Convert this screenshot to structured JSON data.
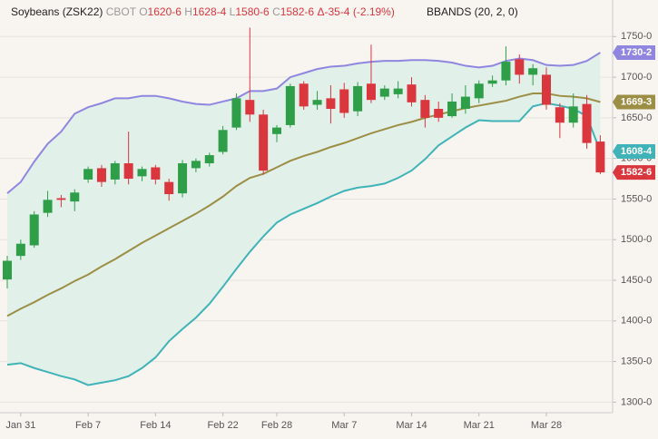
{
  "chart_data": {
    "type": "candlestick",
    "header": {
      "symbol": "Soybeans (ZSK22)",
      "exchange": "CBOT",
      "open_key": "O",
      "open": "1620-6",
      "high_key": "H",
      "high": "1628-4",
      "low_key": "L",
      "low": "1580-6",
      "close_key": "C",
      "close": "1582-6",
      "change_key": "Δ",
      "change": "-35-4",
      "change_pct": "(-2.19%)",
      "indicator": "BBANDS (20, 2, 0)"
    },
    "categories": [
      null,
      "Jan 31",
      null,
      null,
      null,
      null,
      "Feb 7",
      null,
      null,
      null,
      null,
      "Feb 14",
      null,
      null,
      null,
      null,
      "Feb 22",
      null,
      null,
      null,
      "Feb 28",
      null,
      null,
      null,
      null,
      "Mar 7",
      null,
      null,
      null,
      null,
      "Mar 14",
      null,
      null,
      null,
      null,
      "Mar 21",
      null,
      null,
      null,
      null,
      "Mar 28",
      null,
      null,
      null,
      null
    ],
    "ohlc": {
      "up_color": "#2e9e48",
      "down_color": "#d9363e",
      "open": [
        1451,
        1480,
        1493,
        1533,
        1551,
        1547,
        1574,
        1588,
        1574,
        1594,
        1578,
        1589,
        1571,
        1557,
        1588,
        1594,
        1608,
        1638,
        1672,
        1654,
        1630,
        1641,
        1692,
        1666,
        1674,
        1685,
        1658,
        1692,
        1676,
        1679,
        1691,
        1672,
        1661,
        1652,
        1661,
        1674,
        1692,
        1696,
        1722,
        1703,
        1703,
        1663,
        1644,
        1667,
        1620.75
      ],
      "high": [
        1480,
        1500,
        1535,
        1560,
        1555,
        1562,
        1590,
        1592,
        1597,
        1633,
        1590,
        1592,
        1575,
        1598,
        1600,
        1607,
        1640,
        1680,
        1761,
        1660,
        1641,
        1692,
        1695,
        1683,
        1690,
        1693,
        1694,
        1740,
        1690,
        1695,
        1700,
        1678,
        1670,
        1680,
        1690,
        1696,
        1702,
        1738,
        1728,
        1716,
        1712,
        1668,
        1680,
        1678,
        1628.5
      ],
      "low": [
        1440,
        1475,
        1490,
        1528,
        1540,
        1535,
        1570,
        1565,
        1568,
        1568,
        1572,
        1568,
        1548,
        1552,
        1583,
        1590,
        1605,
        1635,
        1645,
        1580,
        1620,
        1638,
        1660,
        1660,
        1643,
        1650,
        1652,
        1668,
        1672,
        1674,
        1664,
        1638,
        1645,
        1650,
        1655,
        1668,
        1688,
        1690,
        1692,
        1690,
        1660,
        1625,
        1638,
        1612,
        1580.75
      ],
      "close": [
        1474,
        1495,
        1531,
        1549,
        1549,
        1558,
        1587,
        1571,
        1594,
        1575,
        1587,
        1574,
        1556,
        1594,
        1597,
        1604,
        1635,
        1674,
        1654,
        1585,
        1638,
        1689,
        1664,
        1672,
        1661,
        1656,
        1689,
        1672,
        1686,
        1686,
        1669,
        1650,
        1650,
        1670,
        1676,
        1692,
        1696,
        1719,
        1703,
        1711,
        1666,
        1644,
        1664,
        1619,
        1582.75
      ],
      "close_labels": [
        null,
        null,
        null,
        null,
        null,
        null,
        null,
        null,
        null,
        null,
        null,
        null,
        null,
        null,
        null,
        null,
        null,
        null,
        null,
        null,
        null,
        null,
        null,
        null,
        null,
        null,
        null,
        null,
        null,
        null,
        null,
        null,
        null,
        null,
        null,
        null,
        null,
        null,
        null,
        null,
        null,
        null,
        null,
        null,
        "1582-6"
      ]
    },
    "bands": [
      {
        "color": "#8f86e0",
        "values": [
          1557,
          1571,
          1596,
          1618,
          1633,
          1655,
          1663,
          1668,
          1674,
          1674,
          1677,
          1677,
          1674,
          1670,
          1667,
          1666,
          1670,
          1674,
          1683,
          1683,
          1686,
          1700,
          1705,
          1710,
          1713,
          1714,
          1717,
          1719,
          1720,
          1720,
          1721,
          1721,
          1720,
          1718,
          1714,
          1712,
          1714,
          1720,
          1723,
          1721,
          1715,
          1714,
          1715,
          1720,
          1730.25
        ],
        "value_labels": [
          null,
          null,
          null,
          null,
          null,
          null,
          null,
          null,
          null,
          null,
          null,
          null,
          null,
          null,
          null,
          null,
          null,
          null,
          null,
          null,
          null,
          null,
          null,
          null,
          null,
          null,
          null,
          null,
          null,
          null,
          null,
          null,
          null,
          null,
          null,
          null,
          null,
          null,
          null,
          null,
          null,
          null,
          null,
          null,
          "1730-2"
        ]
      },
      {
        "color": "#9c8f45",
        "values": [
          1406,
          1415,
          1423,
          1432,
          1440,
          1449,
          1457,
          1467,
          1476,
          1486,
          1496,
          1505,
          1514,
          1523,
          1532,
          1542,
          1553,
          1566,
          1576,
          1581,
          1589,
          1597,
          1603,
          1608,
          1614,
          1619,
          1625,
          1631,
          1636,
          1641,
          1645,
          1650,
          1654,
          1658,
          1662,
          1665,
          1668,
          1671,
          1676,
          1680,
          1680,
          1677,
          1676,
          1674,
          1669.375
        ],
        "value_labels": [
          null,
          null,
          null,
          null,
          null,
          null,
          null,
          null,
          null,
          null,
          null,
          null,
          null,
          null,
          null,
          null,
          null,
          null,
          null,
          null,
          null,
          null,
          null,
          null,
          null,
          null,
          null,
          null,
          null,
          null,
          null,
          null,
          null,
          null,
          null,
          null,
          null,
          null,
          null,
          null,
          null,
          null,
          null,
          null,
          "1669-3"
        ]
      },
      {
        "color": "#3fb3b8",
        "values": [
          1346,
          1348,
          1342,
          1337,
          1332,
          1328,
          1321,
          1324,
          1327,
          1332,
          1342,
          1355,
          1375,
          1390,
          1404,
          1421,
          1442,
          1464,
          1485,
          1504,
          1521,
          1531,
          1538,
          1545,
          1553,
          1560,
          1564,
          1566,
          1569,
          1576,
          1585,
          1599,
          1616,
          1627,
          1638,
          1647,
          1646,
          1646,
          1646,
          1664,
          1668,
          1665,
          1661,
          1652,
          1608.5
        ],
        "value_labels": [
          null,
          null,
          null,
          null,
          null,
          null,
          null,
          null,
          null,
          null,
          null,
          null,
          null,
          null,
          null,
          null,
          null,
          null,
          null,
          null,
          null,
          null,
          null,
          null,
          null,
          null,
          null,
          null,
          null,
          null,
          null,
          null,
          null,
          null,
          null,
          null,
          null,
          null,
          null,
          null,
          null,
          null,
          null,
          null,
          "1608-4"
        ]
      }
    ],
    "band_fill": "#e2f0ea",
    "ylim": [
      1287,
      1795
    ],
    "yticks": [
      {
        "value": 1300,
        "label": "1300-0"
      },
      {
        "value": 1350,
        "label": "1350-0"
      },
      {
        "value": 1400,
        "label": "1400-0"
      },
      {
        "value": 1450,
        "label": "1450-0"
      },
      {
        "value": 1500,
        "label": "1500-0"
      },
      {
        "value": 1550,
        "label": "1550-0"
      },
      {
        "value": 1600,
        "label": "1600-0"
      },
      {
        "value": 1650,
        "label": "1650-0"
      },
      {
        "value": 1700,
        "label": "1700-0"
      },
      {
        "value": 1750,
        "label": "1750-0"
      }
    ],
    "grid": true
  }
}
